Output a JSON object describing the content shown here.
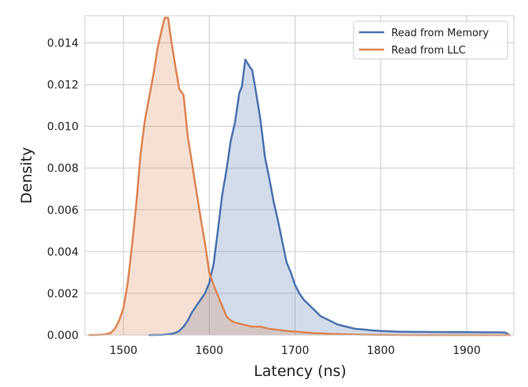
{
  "chart_data": {
    "type": "area",
    "xlabel": "Latency (ns)",
    "ylabel": "Density",
    "xlim": [
      1455,
      1955
    ],
    "ylim": [
      0,
      0.0153
    ],
    "xticks": [
      1500,
      1600,
      1700,
      1800,
      1900
    ],
    "yticks": [
      0.0,
      0.002,
      0.004,
      0.006,
      0.008,
      0.01,
      0.012,
      0.014
    ],
    "xtick_labels": [
      "1500",
      "1600",
      "1700",
      "1800",
      "1900"
    ],
    "ytick_labels": [
      "0.000",
      "0.002",
      "0.004",
      "0.006",
      "0.008",
      "0.010",
      "0.012",
      "0.014"
    ],
    "grid": true,
    "legend_position": "top-right",
    "series": [
      {
        "name": "Read from Memory",
        "color": "#4c72b0",
        "points": [
          [
            1530,
            0.0
          ],
          [
            1545,
            1e-05
          ],
          [
            1555,
            5e-05
          ],
          [
            1560,
            0.0001
          ],
          [
            1565,
            0.0002
          ],
          [
            1570,
            0.0004
          ],
          [
            1575,
            0.0007
          ],
          [
            1580,
            0.0011
          ],
          [
            1585,
            0.0014
          ],
          [
            1590,
            0.0017
          ],
          [
            1595,
            0.002
          ],
          [
            1600,
            0.0025
          ],
          [
            1605,
            0.0034
          ],
          [
            1610,
            0.005
          ],
          [
            1615,
            0.0067
          ],
          [
            1620,
            0.0079
          ],
          [
            1625,
            0.0093
          ],
          [
            1630,
            0.0102
          ],
          [
            1635,
            0.0116
          ],
          [
            1638,
            0.0119
          ],
          [
            1642,
            0.0132
          ],
          [
            1645,
            0.013
          ],
          [
            1648,
            0.0128
          ],
          [
            1650,
            0.0127
          ],
          [
            1653,
            0.012
          ],
          [
            1657,
            0.011
          ],
          [
            1660,
            0.0102
          ],
          [
            1665,
            0.0085
          ],
          [
            1670,
            0.0075
          ],
          [
            1675,
            0.0064
          ],
          [
            1680,
            0.0055
          ],
          [
            1685,
            0.0045
          ],
          [
            1690,
            0.0035
          ],
          [
            1695,
            0.003
          ],
          [
            1700,
            0.0024
          ],
          [
            1705,
            0.002
          ],
          [
            1710,
            0.0017
          ],
          [
            1715,
            0.0015
          ],
          [
            1720,
            0.0013
          ],
          [
            1725,
            0.0011
          ],
          [
            1730,
            0.0009
          ],
          [
            1735,
            0.0008
          ],
          [
            1740,
            0.0007
          ],
          [
            1745,
            0.0006
          ],
          [
            1750,
            0.0005
          ],
          [
            1760,
            0.0004
          ],
          [
            1770,
            0.0003
          ],
          [
            1780,
            0.00027
          ],
          [
            1790,
            0.00022
          ],
          [
            1800,
            0.0002
          ],
          [
            1820,
            0.00016
          ],
          [
            1850,
            0.00015
          ],
          [
            1880,
            0.00014
          ],
          [
            1900,
            0.00014
          ],
          [
            1920,
            0.00013
          ],
          [
            1940,
            0.00013
          ],
          [
            1945,
            0.00012
          ],
          [
            1950,
            0.0
          ]
        ]
      },
      {
        "name": "Read from LLC",
        "color": "#dd8452",
        "points": [
          [
            1460,
            0.0
          ],
          [
            1470,
            1e-05
          ],
          [
            1478,
            3e-05
          ],
          [
            1485,
            0.0001
          ],
          [
            1490,
            0.0003
          ],
          [
            1495,
            0.0007
          ],
          [
            1500,
            0.0013
          ],
          [
            1505,
            0.0025
          ],
          [
            1510,
            0.0043
          ],
          [
            1515,
            0.0063
          ],
          [
            1520,
            0.0087
          ],
          [
            1525,
            0.0103
          ],
          [
            1530,
            0.0114
          ],
          [
            1535,
            0.0125
          ],
          [
            1540,
            0.0138
          ],
          [
            1545,
            0.0147
          ],
          [
            1548,
            0.0152
          ],
          [
            1552,
            0.0152
          ],
          [
            1555,
            0.0143
          ],
          [
            1560,
            0.013
          ],
          [
            1565,
            0.0118
          ],
          [
            1570,
            0.0115
          ],
          [
            1575,
            0.0095
          ],
          [
            1580,
            0.0082
          ],
          [
            1585,
            0.0069
          ],
          [
            1590,
            0.0056
          ],
          [
            1595,
            0.0044
          ],
          [
            1600,
            0.003
          ],
          [
            1605,
            0.0024
          ],
          [
            1610,
            0.0019
          ],
          [
            1615,
            0.0014
          ],
          [
            1620,
            0.0009
          ],
          [
            1625,
            0.0007
          ],
          [
            1630,
            0.0006
          ],
          [
            1640,
            0.0005
          ],
          [
            1650,
            0.0004
          ],
          [
            1660,
            0.0004
          ],
          [
            1670,
            0.0003
          ],
          [
            1680,
            0.00025
          ],
          [
            1690,
            0.0002
          ],
          [
            1700,
            0.00017
          ],
          [
            1720,
            0.0001
          ],
          [
            1740,
            6e-05
          ],
          [
            1760,
            4e-05
          ],
          [
            1780,
            2e-05
          ],
          [
            1800,
            1e-05
          ],
          [
            1840,
            0.0
          ],
          [
            1900,
            0.0
          ],
          [
            1950,
            0.0
          ]
        ]
      }
    ]
  }
}
